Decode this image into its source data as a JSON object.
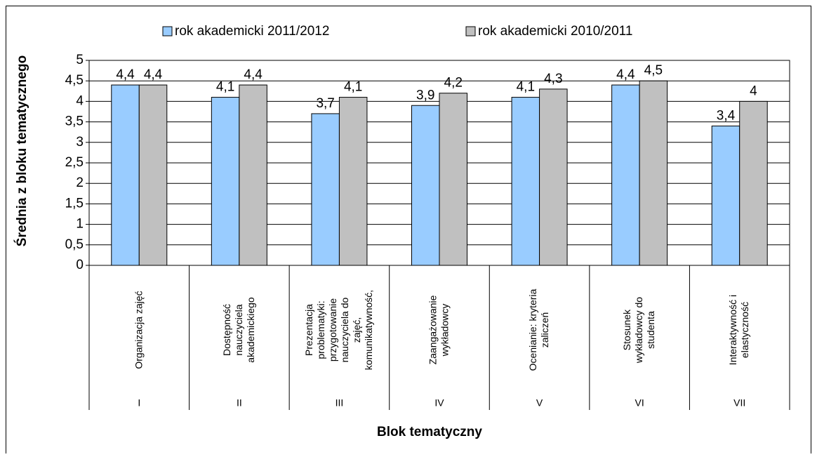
{
  "chart_data": {
    "type": "bar",
    "y_label": "Średnia z bloku tematycznego",
    "x_label": "Blok tematyczny",
    "categories": [
      "Organizacja zajęć",
      "Dostępność\nnauczyciela\nakademickiego",
      "Prezentacja\nproblematyki:\nprzygotowanie\nnauczyciela do\nzajęć,\nkomunikatywność,",
      "Zaangażowanie\nwykładowcy",
      "Ocenianie: kryteria\nzaliczeń",
      "Stosunek\nwykładowcy do\nstudenta",
      "Interaktywność i\nelastyczność"
    ],
    "category_numbers": [
      "I",
      "II",
      "III",
      "IV",
      "V",
      "VI",
      "VII"
    ],
    "series": [
      {
        "name": "rok akademicki 2011/2012",
        "color": "#99ccff",
        "values": [
          4.4,
          4.1,
          3.7,
          3.9,
          4.1,
          4.4,
          3.4
        ],
        "value_labels": [
          "4,4",
          "4,1",
          "3,7",
          "3,9",
          "4,1",
          "4,4",
          "3,4"
        ]
      },
      {
        "name": "rok akademicki 2010/2011",
        "color": "#c0c0c0",
        "values": [
          4.4,
          4.4,
          4.1,
          4.2,
          4.3,
          4.5,
          4
        ],
        "value_labels": [
          "4,4",
          "4,4",
          "4,1",
          "4,2",
          "4,3",
          "4,5",
          "4"
        ]
      }
    ],
    "ylim": [
      0,
      5
    ],
    "yticks": [
      0,
      {
        "value": 0.5,
        "label": "0,5"
      },
      1,
      {
        "value": 1.5,
        "label": "1,5"
      },
      2,
      {
        "value": 2.5,
        "label": "2,5"
      },
      3,
      {
        "value": 3.5,
        "label": "3,5"
      },
      4,
      {
        "value": 4.5,
        "label": "4,5"
      },
      5
    ],
    "grid": true,
    "legend": "top"
  }
}
